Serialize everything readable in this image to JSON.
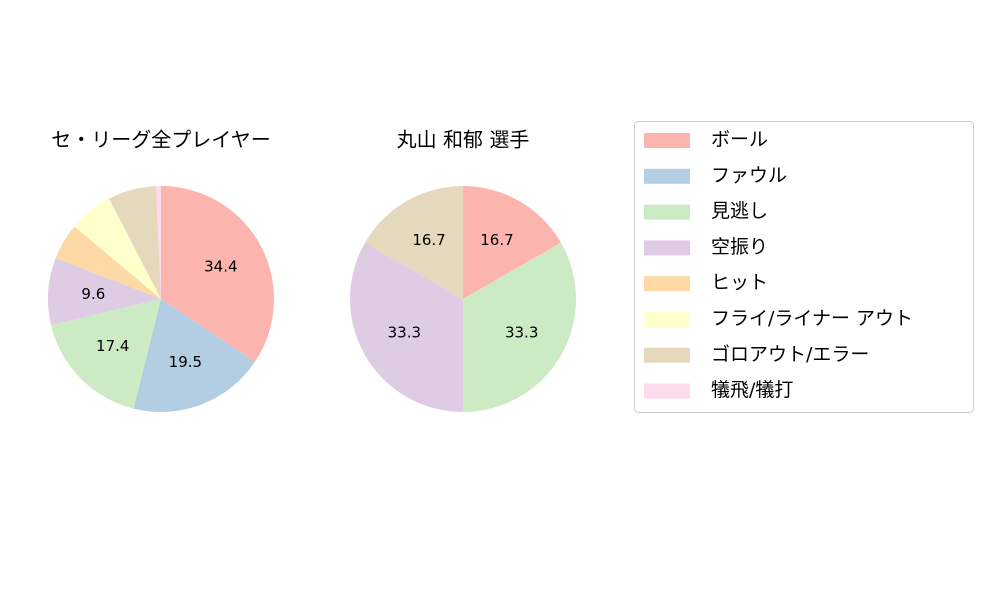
{
  "chart_data": [
    {
      "type": "pie",
      "title": "セ・リーグ全プレイヤー",
      "categories": [
        "ボール",
        "ファウル",
        "見逃し",
        "空振り",
        "ヒット",
        "フライ/ライナー アウト",
        "ゴロアウト/エラー",
        "犠飛/犠打"
      ],
      "values": [
        34.4,
        19.5,
        17.4,
        9.6,
        5.2,
        6.3,
        6.9,
        0.7
      ],
      "colors": [
        "#fbb4ae",
        "#b3cde3",
        "#ccebc5",
        "#decbe4",
        "#fed9a6",
        "#ffffcc",
        "#e5d8bd",
        "#fddaec"
      ]
    },
    {
      "type": "pie",
      "title": "丸山 和郁  選手",
      "categories": [
        "ボール",
        "ファウル",
        "見逃し",
        "空振り",
        "ヒット",
        "フライ/ライナー アウト",
        "ゴロアウト/エラー",
        "犠飛/犠打"
      ],
      "values": [
        16.7,
        0,
        33.3,
        33.3,
        0,
        0,
        16.7,
        0
      ],
      "colors": [
        "#fbb4ae",
        "#b3cde3",
        "#ccebc5",
        "#decbe4",
        "#fed9a6",
        "#ffffcc",
        "#e5d8bd",
        "#fddaec"
      ]
    }
  ]
}
